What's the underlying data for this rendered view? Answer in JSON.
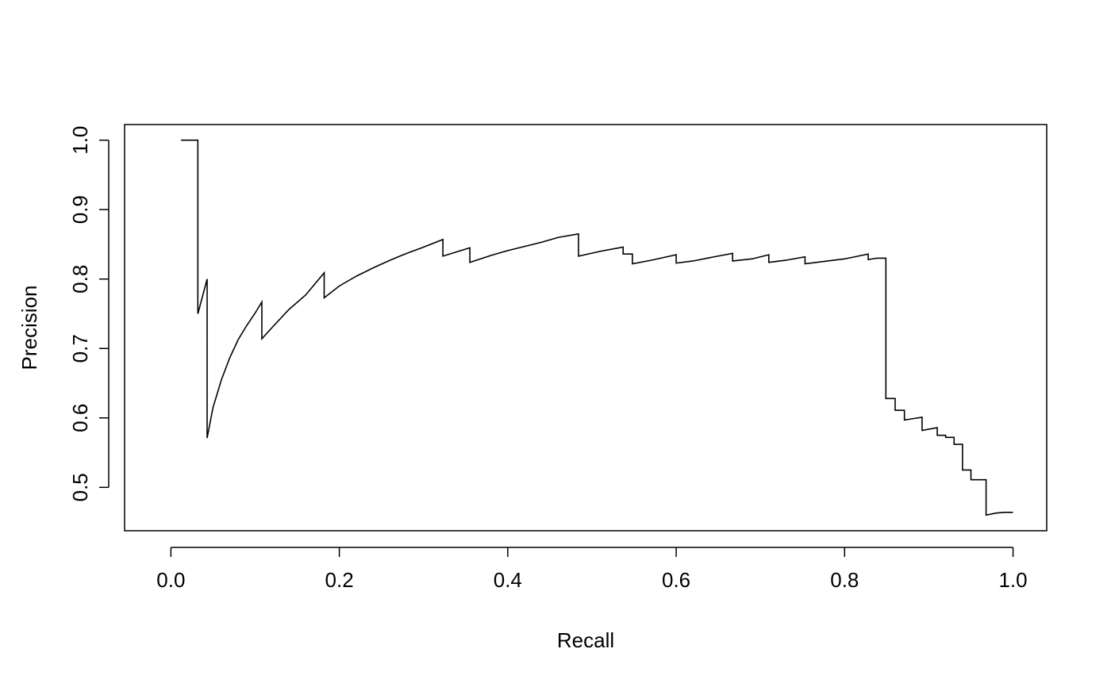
{
  "chart_data": {
    "type": "line",
    "title": "",
    "xlabel": "Recall",
    "ylabel": "Precision",
    "xlim": [
      -0.055,
      1.04
    ],
    "ylim": [
      0.4375,
      1.0225
    ],
    "grid": false,
    "legend": "none",
    "x_ticks": [
      0.0,
      0.2,
      0.4,
      0.6,
      0.8,
      1.0
    ],
    "x_tick_labels": [
      "0.0",
      "0.2",
      "0.4",
      "0.6",
      "0.8",
      "1.0"
    ],
    "y_ticks": [
      0.5,
      0.6,
      0.7,
      0.8,
      0.9,
      1.0
    ],
    "y_tick_labels": [
      "0.5",
      "0.6",
      "0.7",
      "0.8",
      "0.9",
      "1.0"
    ],
    "line_color": "#000000",
    "series": [
      {
        "points": [
          [
            0.012,
            1.0
          ],
          [
            0.032,
            1.0
          ],
          [
            0.032,
            0.75
          ],
          [
            0.043,
            0.8
          ],
          [
            0.043,
            0.571
          ],
          [
            0.05,
            0.615
          ],
          [
            0.06,
            0.655
          ],
          [
            0.07,
            0.687
          ],
          [
            0.08,
            0.713
          ],
          [
            0.09,
            0.733
          ],
          [
            0.1,
            0.751
          ],
          [
            0.108,
            0.767
          ],
          [
            0.108,
            0.714
          ],
          [
            0.12,
            0.73
          ],
          [
            0.14,
            0.756
          ],
          [
            0.16,
            0.777
          ],
          [
            0.182,
            0.809
          ],
          [
            0.182,
            0.773
          ],
          [
            0.2,
            0.79
          ],
          [
            0.22,
            0.804
          ],
          [
            0.24,
            0.816
          ],
          [
            0.26,
            0.827
          ],
          [
            0.28,
            0.837
          ],
          [
            0.3,
            0.846
          ],
          [
            0.323,
            0.857
          ],
          [
            0.323,
            0.833
          ],
          [
            0.355,
            0.845
          ],
          [
            0.355,
            0.824
          ],
          [
            0.38,
            0.834
          ],
          [
            0.4,
            0.841
          ],
          [
            0.42,
            0.847
          ],
          [
            0.44,
            0.853
          ],
          [
            0.46,
            0.86
          ],
          [
            0.484,
            0.865
          ],
          [
            0.484,
            0.833
          ],
          [
            0.51,
            0.84
          ],
          [
            0.537,
            0.846
          ],
          [
            0.537,
            0.836
          ],
          [
            0.548,
            0.836
          ],
          [
            0.548,
            0.822
          ],
          [
            0.57,
            0.827
          ],
          [
            0.6,
            0.835
          ],
          [
            0.6,
            0.823
          ],
          [
            0.62,
            0.826
          ],
          [
            0.645,
            0.832
          ],
          [
            0.667,
            0.837
          ],
          [
            0.667,
            0.826
          ],
          [
            0.69,
            0.829
          ],
          [
            0.71,
            0.835
          ],
          [
            0.71,
            0.824
          ],
          [
            0.73,
            0.827
          ],
          [
            0.753,
            0.832
          ],
          [
            0.753,
            0.822
          ],
          [
            0.78,
            0.826
          ],
          [
            0.8,
            0.829
          ],
          [
            0.828,
            0.836
          ],
          [
            0.828,
            0.828
          ],
          [
            0.838,
            0.83
          ],
          [
            0.849,
            0.83
          ],
          [
            0.849,
            0.628
          ],
          [
            0.86,
            0.628
          ],
          [
            0.86,
            0.611
          ],
          [
            0.871,
            0.611
          ],
          [
            0.871,
            0.597
          ],
          [
            0.892,
            0.601
          ],
          [
            0.892,
            0.582
          ],
          [
            0.91,
            0.586
          ],
          [
            0.91,
            0.575
          ],
          [
            0.92,
            0.575
          ],
          [
            0.92,
            0.572
          ],
          [
            0.93,
            0.572
          ],
          [
            0.93,
            0.562
          ],
          [
            0.94,
            0.562
          ],
          [
            0.94,
            0.525
          ],
          [
            0.95,
            0.525
          ],
          [
            0.95,
            0.511
          ],
          [
            0.968,
            0.511
          ],
          [
            0.968,
            0.46
          ],
          [
            0.98,
            0.463
          ],
          [
            0.99,
            0.464
          ],
          [
            1.0,
            0.464
          ]
        ]
      }
    ]
  }
}
